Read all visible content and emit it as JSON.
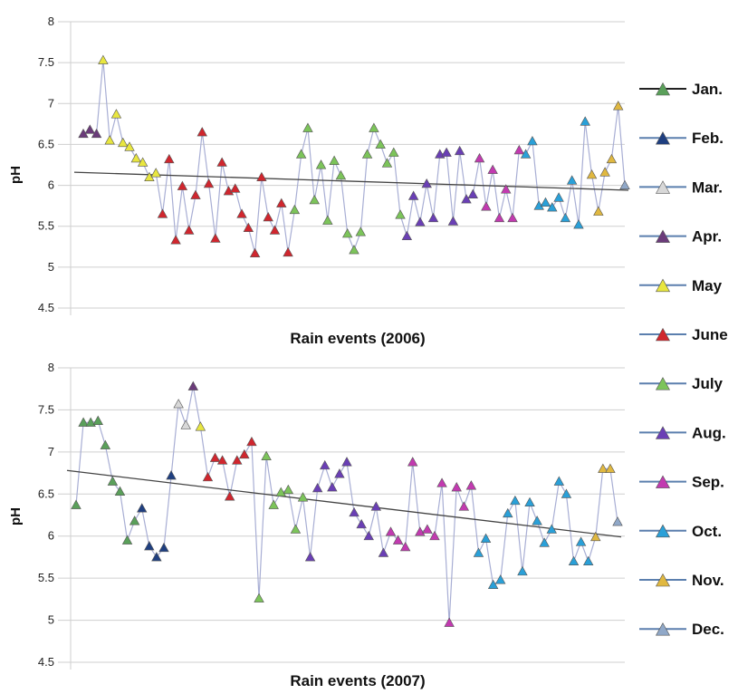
{
  "months": {
    "Jan.": "#5aa05a",
    "Feb.": "#1f3f80",
    "Mar.": "#d8d8d8",
    "Apr.": "#6b3b7a",
    "May": "#e8e640",
    "June": "#d0262e",
    "July": "#7cc45a",
    "Aug.": "#6a3fb5",
    "Sep.": "#c23ab0",
    "Oct.": "#2aa0d8",
    "Nov.": "#e0b840",
    "Dec.": "#90a8c8"
  },
  "legend": [
    "Jan.",
    "Feb.",
    "Mar.",
    "Apr.",
    "May",
    "June",
    "July",
    "Aug.",
    "Sep.",
    "Oct.",
    "Nov.",
    "Dec."
  ],
  "chart_data": [
    {
      "type": "line",
      "xlabel": "Rain events (2006)",
      "ylabel": "pH",
      "ylim": [
        4.5,
        8
      ],
      "yticks": [
        "4.5",
        "5",
        "5.5",
        "6",
        "6.5",
        "7",
        "7.5",
        "8"
      ],
      "grid": "horizontal",
      "trendline": [
        6.16,
        5.94
      ],
      "series": [
        {
          "month": "Apr.",
          "values": [
            6.63,
            6.68,
            6.63
          ]
        },
        {
          "month": "May",
          "values": [
            7.53,
            6.55,
            6.87,
            6.52,
            6.47,
            6.33,
            6.28,
            6.1,
            6.15
          ]
        },
        {
          "month": "June",
          "values": [
            5.65,
            6.32,
            5.33,
            5.99,
            5.45,
            5.88,
            6.65,
            6.02,
            5.35,
            6.28,
            5.93,
            5.96,
            5.65,
            5.48,
            5.17,
            6.1,
            5.61,
            5.45,
            5.78,
            5.18
          ]
        },
        {
          "month": "July",
          "values": [
            5.7,
            6.38,
            6.7,
            5.82,
            6.25,
            5.57,
            6.3,
            6.12,
            5.41,
            5.21,
            5.43,
            6.38,
            6.7,
            6.5,
            6.27,
            6.4,
            5.64
          ]
        },
        {
          "month": "Aug.",
          "values": [
            5.38,
            5.87,
            5.55,
            6.02,
            5.6,
            6.38,
            6.4,
            5.56,
            6.42,
            5.83,
            5.89
          ]
        },
        {
          "month": "Sep.",
          "values": [
            6.33,
            5.74,
            6.19,
            5.6,
            5.95,
            5.6,
            6.43
          ]
        },
        {
          "month": "Oct.",
          "values": [
            6.38,
            6.54,
            5.75,
            5.79,
            5.73,
            5.85,
            5.6,
            6.06,
            5.52,
            6.78
          ]
        },
        {
          "month": "Nov.",
          "values": [
            6.13,
            5.68,
            6.16,
            6.32,
            6.97
          ]
        },
        {
          "month": "Dec.",
          "values": [
            6.0
          ]
        }
      ]
    },
    {
      "type": "line",
      "xlabel": "Rain events (2007)",
      "ylabel": "pH",
      "ylim": [
        4.5,
        8
      ],
      "yticks": [
        "4.5",
        "5",
        "5.5",
        "6",
        "6.5",
        "7",
        "7.5",
        "8"
      ],
      "grid": "horizontal",
      "trendline": [
        6.78,
        5.99
      ],
      "series": [
        {
          "month": "Jan.",
          "values": [
            6.37,
            7.35,
            7.35,
            7.37,
            7.08,
            6.65,
            6.53,
            5.95,
            6.18
          ]
        },
        {
          "month": "Feb.",
          "values": [
            6.33,
            5.88,
            5.75,
            5.86,
            6.72
          ]
        },
        {
          "month": "Mar.",
          "values": [
            7.57,
            7.32
          ]
        },
        {
          "month": "Apr.",
          "values": [
            7.78
          ]
        },
        {
          "month": "May",
          "values": [
            7.3
          ]
        },
        {
          "month": "June",
          "values": [
            6.7,
            6.93,
            6.9,
            6.47,
            6.9,
            6.97,
            7.12
          ]
        },
        {
          "month": "July",
          "values": [
            5.26,
            6.95,
            6.37,
            6.52,
            6.55,
            6.08,
            6.46
          ]
        },
        {
          "month": "Aug.",
          "values": [
            5.75,
            6.57,
            6.84,
            6.58,
            6.74,
            6.88,
            6.28,
            6.14,
            6.0,
            6.35,
            5.8
          ]
        },
        {
          "month": "Sep.",
          "values": [
            6.05,
            5.95,
            5.87,
            6.88,
            6.05,
            6.08,
            6.0,
            6.63,
            4.97,
            6.58,
            6.35,
            6.6
          ]
        },
        {
          "month": "Oct.",
          "values": [
            5.8,
            5.97,
            5.42,
            5.48,
            6.27,
            6.42,
            5.58,
            6.4,
            6.18,
            5.92,
            6.08,
            6.65,
            6.5,
            5.7,
            5.93,
            5.7
          ]
        },
        {
          "month": "Nov.",
          "values": [
            5.99,
            6.8,
            6.8
          ]
        },
        {
          "month": "Dec.",
          "values": [
            6.17
          ]
        }
      ]
    }
  ]
}
